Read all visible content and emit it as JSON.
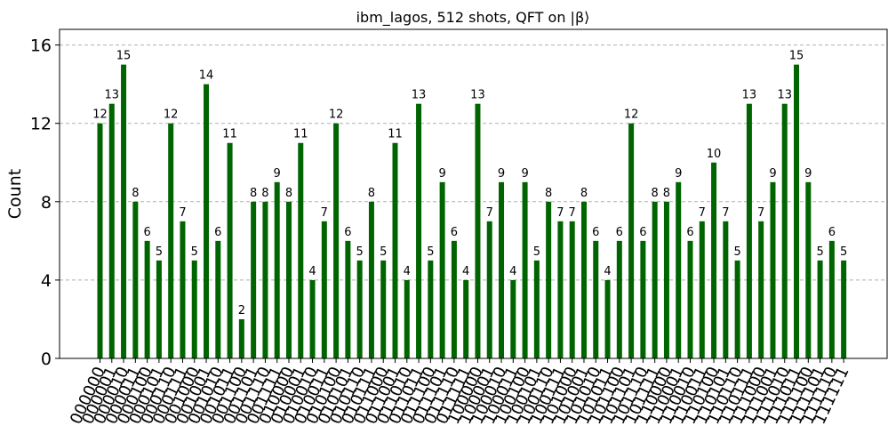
{
  "chart_data": {
    "type": "bar",
    "title": "ibm_lagos, 512 shots, QFT on |β⟩",
    "xlabel": "",
    "ylabel": "Count",
    "ylim": [
      0,
      16.8
    ],
    "yticks": [
      0,
      4,
      8,
      12,
      16
    ],
    "grid": "horizontal dashed",
    "bar_color": "#006400",
    "categories": [
      "000000",
      "000001",
      "000010",
      "000011",
      "000100",
      "000101",
      "000110",
      "000111",
      "001000",
      "001001",
      "001010",
      "001011",
      "001100",
      "001101",
      "001110",
      "001111",
      "010000",
      "010001",
      "010010",
      "010011",
      "010100",
      "010101",
      "010110",
      "010111",
      "011000",
      "011001",
      "011010",
      "011011",
      "011100",
      "011101",
      "011110",
      "011111",
      "100000",
      "100001",
      "100010",
      "100011",
      "100100",
      "100101",
      "100110",
      "100111",
      "101000",
      "101001",
      "101010",
      "101011",
      "101100",
      "101101",
      "101110",
      "101111",
      "110000",
      "110001",
      "110010",
      "110011",
      "110100",
      "110101",
      "110110",
      "110111",
      "111000",
      "111001",
      "111010",
      "111011",
      "111100",
      "111101",
      "111110",
      "111111"
    ],
    "values": [
      12,
      13,
      15,
      8,
      6,
      5,
      12,
      7,
      5,
      14,
      6,
      11,
      2,
      8,
      8,
      9,
      8,
      11,
      4,
      7,
      12,
      6,
      5,
      8,
      5,
      11,
      4,
      13,
      5,
      9,
      6,
      4,
      13,
      7,
      9,
      4,
      9,
      5,
      8,
      7,
      7,
      8,
      6,
      4,
      6,
      12,
      6,
      8,
      8,
      9,
      6,
      7,
      10,
      7,
      5,
      13,
      7,
      9,
      13,
      15,
      9,
      5,
      6,
      5
    ]
  }
}
